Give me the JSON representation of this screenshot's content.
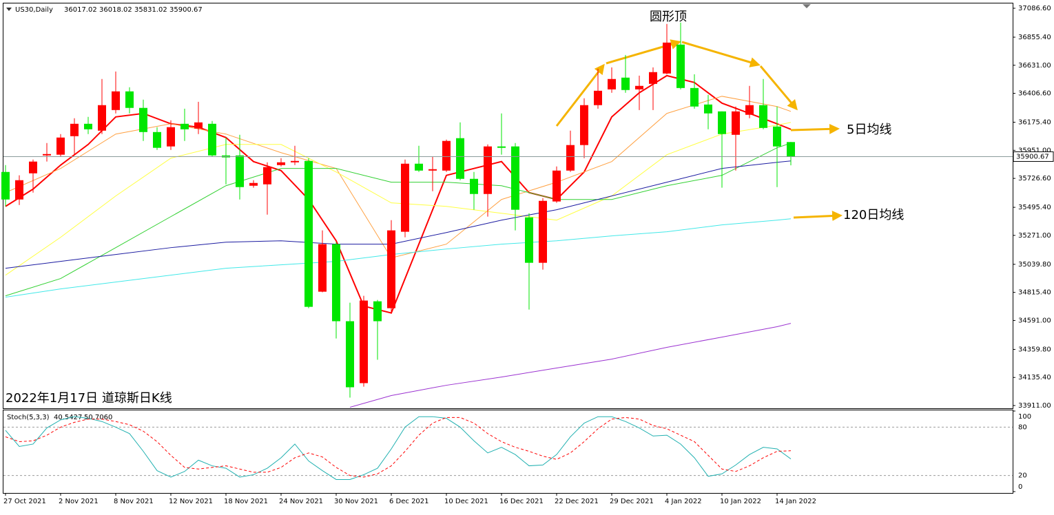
{
  "chart_data": [
    {
      "type": "candlestick",
      "symbol": "US30,Daily",
      "categories": [
        "27 Oct 2021",
        null,
        null,
        null,
        "2 Nov 2021",
        null,
        null,
        null,
        "8 Nov 2021",
        null,
        null,
        null,
        "12 Nov 2021",
        null,
        null,
        null,
        "18 Nov 2021",
        null,
        null,
        null,
        "24 Nov 2021",
        null,
        null,
        null,
        "30 Nov 2021",
        null,
        null,
        null,
        "6 Dec 2021",
        null,
        null,
        null,
        "10 Dec 2021",
        null,
        null,
        null,
        "16 Dec 2021",
        null,
        null,
        null,
        "22 Dec 2021",
        null,
        null,
        null,
        "29 Dec 2021",
        null,
        null,
        null,
        "4 Jan 2022",
        null,
        null,
        null,
        "10 Jan 2022",
        null,
        null,
        null,
        "14 Jan 2022",
        null
      ],
      "open": [
        35778,
        35558,
        35767,
        35910,
        35916,
        36064,
        36163,
        36108,
        36273,
        36422,
        36290,
        36097,
        35982,
        36163,
        36125,
        36163,
        35910,
        35910,
        35668,
        35679,
        35833,
        35855,
        35866,
        34821,
        35201,
        34585,
        34090,
        34744,
        34689,
        35300,
        35844,
        35789,
        35789,
        36048,
        35723,
        35602,
        35982,
        35982,
        35415,
        35052,
        35542,
        35789,
        35993,
        36312,
        36438,
        36532,
        36438,
        36482,
        36565,
        36796,
        36449,
        36317,
        36262,
        36075,
        36235,
        36312,
        36141,
        36017.02
      ],
      "high": [
        35833,
        35751,
        35877,
        36009,
        36081,
        36207,
        36218,
        36521,
        36581,
        36455,
        36356,
        36136,
        36191,
        36284,
        36339,
        36185,
        36053,
        36075,
        35712,
        35855,
        35888,
        35987,
        35888,
        35311,
        35217,
        34733,
        34788,
        34755,
        35393,
        35877,
        35987,
        35899,
        36037,
        36174,
        35778,
        35998,
        36246,
        36009,
        35448,
        35569,
        35822,
        36108,
        36367,
        36603,
        36614,
        36713,
        36548,
        36614,
        36961,
        36972,
        36559,
        36394,
        36262,
        36301,
        36466,
        36521,
        36301,
        36018.02
      ],
      "low": [
        35503,
        35514,
        35613,
        35861,
        35899,
        35916,
        36081,
        36081,
        36246,
        36246,
        36026,
        35954,
        35954,
        36026,
        36081,
        35899,
        35679,
        35558,
        35652,
        35437,
        35822,
        35833,
        34689,
        34816,
        34447,
        33974,
        34062,
        34277,
        34645,
        35256,
        35778,
        35624,
        35778,
        35712,
        35476,
        35421,
        35916,
        35311,
        34678,
        34997,
        35531,
        35778,
        35888,
        36284,
        36411,
        36411,
        36273,
        36273,
        36559,
        36438,
        36284,
        36119,
        35652,
        35789,
        36207,
        36119,
        35657,
        35831.02
      ],
      "close": [
        35558,
        35712,
        35861,
        35921,
        36053,
        36163,
        36119,
        36312,
        36422,
        36290,
        36097,
        35971,
        36136,
        36119,
        36174,
        35910,
        35894,
        35657,
        35690,
        35817,
        35855,
        35866,
        34700,
        35201,
        34585,
        34057,
        34750,
        34585,
        35311,
        35844,
        35789,
        35800,
        36026,
        35723,
        35602,
        35982,
        35971,
        35476,
        35052,
        35547,
        35789,
        35993,
        36312,
        36427,
        36521,
        36433,
        36466,
        36576,
        36812,
        36449,
        36301,
        36246,
        36081,
        36262,
        36312,
        36130,
        35982,
        35900.67
      ],
      "up_color": "#ff0000",
      "down_color": "#00e600",
      "ylim": [
        33889,
        37125
      ],
      "yticks": [
        {
          "value": 33911,
          "label": "33911.00"
        },
        {
          "value": 34135.4,
          "label": "34135.40"
        },
        {
          "value": 34359.8,
          "label": "34359.80"
        },
        {
          "value": 34591,
          "label": "34591.00"
        },
        {
          "value": 34815.4,
          "label": "34815.40"
        },
        {
          "value": 35039.8,
          "label": "35039.80"
        },
        {
          "value": 35271,
          "label": "35271.00"
        },
        {
          "value": 35495.4,
          "label": "35495.40"
        },
        {
          "value": 35726.6,
          "label": "35726.60"
        },
        {
          "value": 35951,
          "label": "35951.00"
        },
        {
          "value": 36175.4,
          "label": "36175.40"
        },
        {
          "value": 36406.6,
          "label": "36406.60"
        },
        {
          "value": 36631,
          "label": "36631.00"
        },
        {
          "value": 36855.4,
          "label": "36855.40"
        },
        {
          "value": 37086.6,
          "label": "37086.60"
        }
      ],
      "overlays": [
        {
          "color": "#ff0000",
          "x": [
            0,
            2,
            4,
            6,
            8,
            10,
            12,
            14,
            16,
            18,
            20,
            22,
            24,
            26,
            28,
            30,
            32,
            34,
            36,
            38,
            40,
            42,
            44,
            46,
            48,
            50,
            52,
            54,
            56,
            57
          ],
          "values": [
            35503,
            35641,
            35833,
            35998,
            36218,
            36246,
            36163,
            36136,
            36053,
            35861,
            35789,
            35558,
            35228,
            34706,
            34651,
            35201,
            35751,
            35806,
            35861,
            35613,
            35558,
            35778,
            36218,
            36411,
            36548,
            36493,
            36328,
            36246,
            36163,
            36119
          ]
        },
        {
          "color": "#ffa040",
          "x": [
            0,
            4,
            8,
            12,
            16,
            20,
            24,
            28,
            32,
            36,
            40,
            44,
            48,
            52,
            56,
            57
          ],
          "values": [
            35613,
            35806,
            36081,
            36163,
            36081,
            35932,
            35806,
            35091,
            35201,
            35558,
            35696,
            35861,
            36246,
            36383,
            36301,
            36262
          ]
        },
        {
          "color": "#ffff40",
          "x": [
            0,
            4,
            8,
            12,
            16,
            20,
            24,
            28,
            32,
            36,
            40,
            44,
            48,
            52,
            56,
            57
          ],
          "values": [
            34953,
            35256,
            35586,
            35888,
            35998,
            35998,
            35778,
            35531,
            35503,
            35448,
            35393,
            35586,
            35916,
            36081,
            36152,
            36174
          ]
        },
        {
          "color": "#30d030",
          "x": [
            0,
            4,
            8,
            12,
            16,
            20,
            24,
            28,
            32,
            36,
            40,
            44,
            48,
            52,
            56,
            57
          ],
          "values": [
            34788,
            34926,
            35173,
            35421,
            35668,
            35806,
            35806,
            35696,
            35696,
            35668,
            35558,
            35558,
            35668,
            35751,
            35971,
            36009
          ]
        },
        {
          "color": "#1a1aa0",
          "x": [
            0,
            4,
            8,
            12,
            16,
            20,
            24,
            28,
            32,
            36,
            40,
            44,
            48,
            52,
            56,
            57
          ],
          "values": [
            35008,
            35063,
            35118,
            35173,
            35217,
            35228,
            35201,
            35201,
            35294,
            35393,
            35476,
            35586,
            35696,
            35806,
            35855,
            35866
          ]
        },
        {
          "color": "#40e8e8",
          "x": [
            0,
            4,
            8,
            12,
            16,
            20,
            24,
            28,
            32,
            36,
            40,
            44,
            48,
            52,
            56,
            57
          ],
          "values": [
            34777,
            34843,
            34898,
            34953,
            35008,
            35036,
            35063,
            35118,
            35162,
            35201,
            35228,
            35267,
            35300,
            35355,
            35393,
            35404
          ]
        },
        {
          "color": "#9a30d0",
          "x": [
            25,
            28,
            32,
            36,
            40,
            44,
            48,
            52,
            56,
            57
          ],
          "values": [
            33897,
            33991,
            34073,
            34139,
            34211,
            34282,
            34376,
            34458,
            34541,
            34568
          ]
        }
      ],
      "annotations": [
        {
          "text": "圆形顶"
        },
        {
          "text": "5日均线"
        },
        {
          "text": "120日均线"
        },
        {
          "text": "2022年1月17日 道琼斯日K线"
        }
      ]
    },
    {
      "type": "line",
      "title": "Stoch(5,3,3)",
      "series": [
        {
          "color": "#20b0b0",
          "values": [
            76,
            56,
            59,
            79,
            89,
            93,
            91,
            87,
            80,
            72,
            50,
            26,
            18,
            25,
            39,
            32,
            29,
            18,
            21,
            29,
            42,
            59,
            38,
            26,
            15,
            15,
            21,
            29,
            53,
            80,
            93,
            93,
            91,
            80,
            63,
            48,
            55,
            46,
            32,
            33,
            46,
            68,
            85,
            93,
            93,
            87,
            79,
            69,
            70,
            59,
            42,
            19,
            22,
            33,
            46,
            55,
            53,
            40.5427
          ]
        },
        {
          "color": "#ff0000",
          "dash": true,
          "values": [
            68,
            62,
            63,
            70,
            80,
            86,
            90,
            90,
            87,
            83,
            75,
            62,
            45,
            30,
            28,
            30,
            32,
            28,
            24,
            24,
            30,
            42,
            48,
            43,
            30,
            20,
            18,
            22,
            32,
            50,
            70,
            85,
            92,
            92,
            85,
            72,
            62,
            55,
            50,
            44,
            40,
            48,
            62,
            78,
            90,
            92,
            90,
            82,
            78,
            70,
            62,
            45,
            28,
            25,
            32,
            42,
            50,
            50.706
          ],
          "value_labels": [
            null,
            null,
            null,
            null,
            null,
            null,
            null,
            null,
            null,
            null,
            null,
            null,
            null,
            null,
            null,
            null,
            null,
            null,
            null,
            null,
            null,
            null,
            null,
            null,
            null,
            null,
            null,
            null,
            null,
            null,
            null,
            null,
            null,
            null,
            null,
            null,
            null,
            null,
            null,
            null,
            null,
            null,
            null,
            null,
            null,
            null,
            null,
            null,
            null,
            null,
            null,
            null,
            null,
            null,
            null,
            null,
            null,
            "50.7060"
          ]
        }
      ],
      "ylim": [
        0,
        100
      ],
      "yticks": [
        0,
        20,
        80,
        100
      ]
    }
  ]
}
